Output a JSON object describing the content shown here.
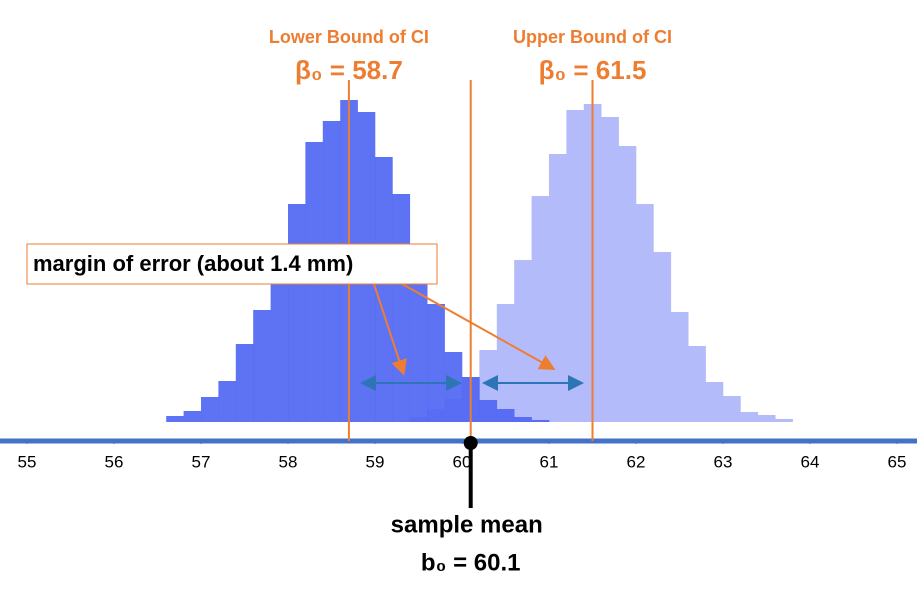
{
  "chart_data": {
    "type": "histogram",
    "xlim": [
      55,
      65
    ],
    "xticks": [
      55,
      56,
      57,
      58,
      59,
      60,
      61,
      62,
      63,
      64,
      65
    ],
    "ylim": [
      0,
      340
    ],
    "axis_color": "#4472c4",
    "series": [
      {
        "color": "#b3bbfb",
        "bins": [
          59.4,
          59.6,
          59.8,
          60.0,
          60.2,
          60.4,
          60.6,
          60.8,
          61.0,
          61.2,
          61.4,
          61.6,
          61.8,
          62.0,
          62.2,
          62.4,
          62.6,
          62.8,
          63.0,
          63.2,
          63.4,
          63.6,
          63.8
        ],
        "values": [
          5,
          13,
          23,
          45,
          72,
          118,
          162,
          226,
          268,
          312,
          318,
          305,
          276,
          218,
          170,
          110,
          76,
          40,
          26,
          10,
          7,
          3
        ]
      },
      {
        "color": "#5066f3",
        "bins": [
          56.6,
          56.8,
          57.0,
          57.2,
          57.4,
          57.6,
          57.8,
          58.0,
          58.2,
          58.4,
          58.6,
          58.8,
          59.0,
          59.2,
          59.4,
          59.6,
          59.8,
          60.0,
          60.2,
          60.4,
          60.6,
          60.8,
          61.0
        ],
        "values": [
          6,
          11,
          25,
          41,
          78,
          112,
          170,
          218,
          280,
          301,
          322,
          310,
          265,
          228,
          160,
          118,
          70,
          45,
          22,
          13,
          5,
          2
        ]
      }
    ],
    "ci_color": "#ed7d31",
    "ci_bounds": [
      {
        "label": "Lower Bound of CI",
        "text": "β₀ = 58.7",
        "x": 58.7
      },
      {
        "label": "Upper Bound of CI",
        "text": "β₀ = 61.5",
        "x": 61.5
      }
    ],
    "sample_mean": {
      "label": "sample mean",
      "text": "b₀ = 60.1",
      "x": 60.1
    },
    "margin_note": "margin of error (about 1.4 mm)"
  }
}
